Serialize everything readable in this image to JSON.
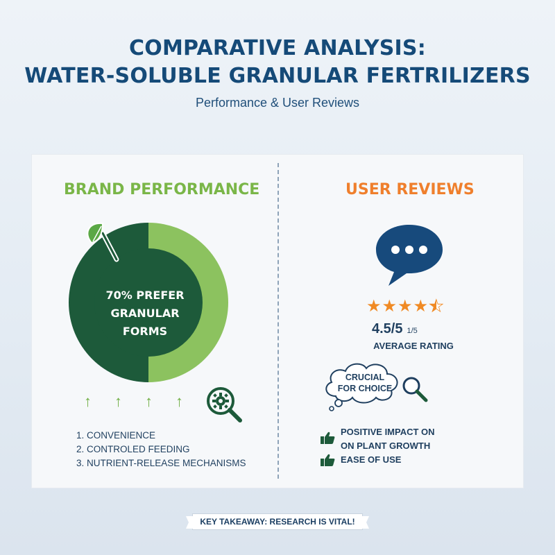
{
  "header": {
    "title_line1": "COMPARATIVE ANALYSIS:",
    "title_line2": "WATER-SOLUBLE GRANULAR FERTRILIZERS",
    "subtitle": "Performance & User Reviews"
  },
  "brand": {
    "heading": "BRAND PERFORMANCE",
    "donut_line1": "70% PREFER",
    "donut_line2": "GRANULAR",
    "donut_line3": "FORMS",
    "preference_percent": 70,
    "colors": {
      "dark": "#1d5a3a",
      "light": "#8cc25f"
    },
    "factors": [
      "1. CONVENIENCE",
      "2. CONTROLED FEEDING",
      "3. NUTRIENT-RELEASE MECHANISMS"
    ]
  },
  "reviews": {
    "heading": "USER REVIEWS",
    "rating_value": "4.5/5",
    "rating_suffix": "1/5",
    "rating_stars": 4.5,
    "rating_label": "AVERAGE RATING",
    "cloud_line1": "CRUCIAL",
    "cloud_line2": "FOR CHOICE",
    "items": [
      {
        "line1": "POSITIVE IMPACT ON",
        "line2": "ON PLANT GROWTH"
      },
      {
        "line1": "EASE OF USE",
        "line2": ""
      }
    ],
    "colors": {
      "accent": "#ef7f2c",
      "bubble": "#174a7c"
    }
  },
  "footer": {
    "takeaway": "KEY TAKEAWAY: RESEARCH IS VITAL!"
  }
}
